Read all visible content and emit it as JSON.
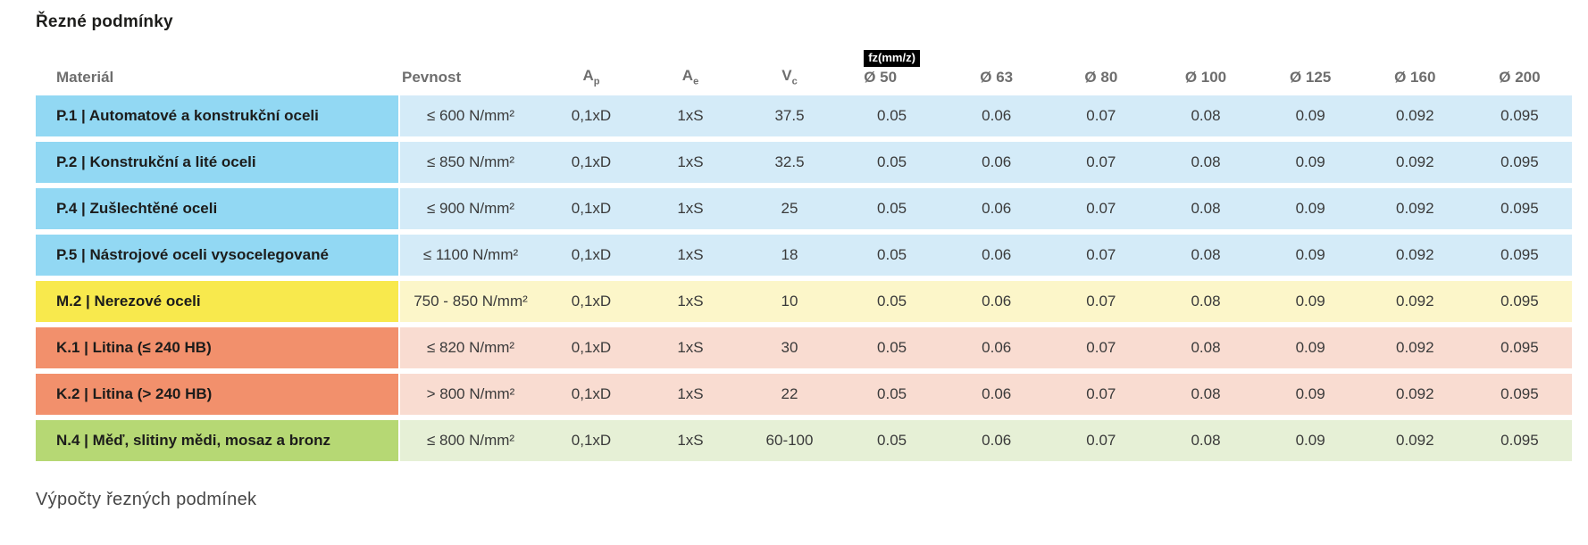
{
  "page": {
    "title": "Řezné podmínky",
    "footer": "Výpočty řezných podmínek"
  },
  "table": {
    "headers": {
      "material": "Materiál",
      "pevnost": "Pevnost",
      "ap_base": "A",
      "ap_sub": "p",
      "ae_base": "A",
      "ae_sub": "e",
      "vc_base": "V",
      "vc_sub": "c",
      "fz_badge": "fz(mm/z)",
      "diameters": [
        "Ø 50",
        "Ø 63",
        "Ø 80",
        "Ø 100",
        "Ø 125",
        "Ø 160",
        "Ø 200"
      ]
    },
    "rows": [
      {
        "material": "P.1 | Automatové a konstrukční oceli",
        "pevnost": "≤ 600 N/mm²",
        "ap": "0,1xD",
        "ae": "1xS",
        "vc": "37.5",
        "fz": [
          "0.05",
          "0.06",
          "0.07",
          "0.08",
          "0.09",
          "0.092",
          "0.095"
        ],
        "color": "blue"
      },
      {
        "material": "P.2 | Konstrukční a lité oceli",
        "pevnost": "≤ 850 N/mm²",
        "ap": "0,1xD",
        "ae": "1xS",
        "vc": "32.5",
        "fz": [
          "0.05",
          "0.06",
          "0.07",
          "0.08",
          "0.09",
          "0.092",
          "0.095"
        ],
        "color": "blue"
      },
      {
        "material": "P.4 | Zušlechtěné oceli",
        "pevnost": "≤ 900 N/mm²",
        "ap": "0,1xD",
        "ae": "1xS",
        "vc": "25",
        "fz": [
          "0.05",
          "0.06",
          "0.07",
          "0.08",
          "0.09",
          "0.092",
          "0.095"
        ],
        "color": "blue"
      },
      {
        "material": "P.5 | Nástrojové oceli vysocelegované",
        "pevnost": "≤ 1100 N/mm²",
        "ap": "0,1xD",
        "ae": "1xS",
        "vc": "18",
        "fz": [
          "0.05",
          "0.06",
          "0.07",
          "0.08",
          "0.09",
          "0.092",
          "0.095"
        ],
        "color": "blue"
      },
      {
        "material": "M.2 | Nerezové oceli",
        "pevnost": "750 - 850 N/mm²",
        "ap": "0,1xD",
        "ae": "1xS",
        "vc": "10",
        "fz": [
          "0.05",
          "0.06",
          "0.07",
          "0.08",
          "0.09",
          "0.092",
          "0.095"
        ],
        "color": "yellow"
      },
      {
        "material": "K.1 | Litina (≤ 240 HB)",
        "pevnost": "≤ 820 N/mm²",
        "ap": "0,1xD",
        "ae": "1xS",
        "vc": "30",
        "fz": [
          "0.05",
          "0.06",
          "0.07",
          "0.08",
          "0.09",
          "0.092",
          "0.095"
        ],
        "color": "orange"
      },
      {
        "material": "K.2 | Litina (> 240 HB)",
        "pevnost": "> 800 N/mm²",
        "ap": "0,1xD",
        "ae": "1xS",
        "vc": "22",
        "fz": [
          "0.05",
          "0.06",
          "0.07",
          "0.08",
          "0.09",
          "0.092",
          "0.095"
        ],
        "color": "orange"
      },
      {
        "material": "N.4 | Měď, slitiny mědi, mosaz a bronz",
        "pevnost": "≤ 800 N/mm²",
        "ap": "0,1xD",
        "ae": "1xS",
        "vc": "60-100",
        "fz": [
          "0.05",
          "0.06",
          "0.07",
          "0.08",
          "0.09",
          "0.092",
          "0.095"
        ],
        "color": "green"
      }
    ],
    "colors": {
      "badge_bg": "#000000",
      "badge_fg": "#ffffff",
      "blue": {
        "label": "#92d8f3",
        "row": "#d4ebf8"
      },
      "yellow": {
        "label": "#f8e94d",
        "row": "#fcf6c9"
      },
      "orange": {
        "label": "#f2906c",
        "row": "#f9dcd1"
      },
      "green": {
        "label": "#b6d874",
        "row": "#e6f0d6"
      }
    }
  }
}
